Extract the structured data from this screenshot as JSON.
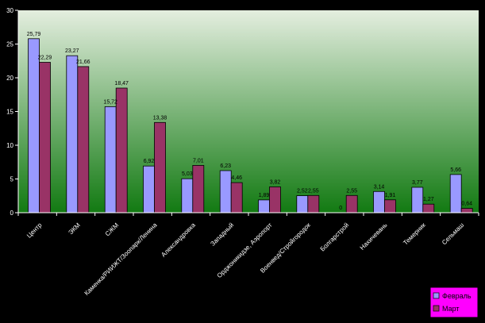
{
  "chart_data": {
    "type": "bar",
    "categories": [
      "Центр",
      "ЭКМ",
      "СЖМ",
      "Каменка/РИИЖТ/Зоопарк/Ленина",
      "Александровка",
      "Западный",
      "Орджоникидзе, Аэропорт",
      "Военвед/Стройгородок",
      "Болгарстрой",
      "Нахичевань",
      "Темерник",
      "Сельмаш"
    ],
    "series": [
      {
        "name": "Февраль",
        "values": [
          25.79,
          23.27,
          15.72,
          6.92,
          5.03,
          6.23,
          1.89,
          2.52,
          0,
          3.14,
          3.77,
          5.66
        ],
        "labels": [
          "25,79",
          "23,27",
          "15,72",
          "6,92",
          "5,03",
          "6,23",
          "1,89",
          "2,52",
          "0",
          "3,14",
          "3,77",
          "5,66"
        ],
        "color": "#9999FF"
      },
      {
        "name": "Март",
        "values": [
          22.29,
          21.66,
          18.47,
          13.38,
          7.01,
          4.46,
          3.82,
          2.55,
          2.55,
          1.91,
          1.27,
          0.64
        ],
        "labels": [
          "22,29",
          "21,66",
          "18,47",
          "13,38",
          "7,01",
          "4,46",
          "3,82",
          "2,55",
          "2,55",
          "1,91",
          "1,27",
          "0,64"
        ],
        "color": "#993366"
      }
    ],
    "ylim": [
      0,
      30
    ],
    "yticks": [
      "0",
      "5",
      "10",
      "15",
      "20",
      "25",
      "30"
    ],
    "grid": false,
    "legend": "bottom-right",
    "legend_bg": "#FF00FF",
    "plot_bg_top": "#E4EEDF",
    "plot_bg_bottom": "#127A12",
    "page_bg": "#000000"
  }
}
